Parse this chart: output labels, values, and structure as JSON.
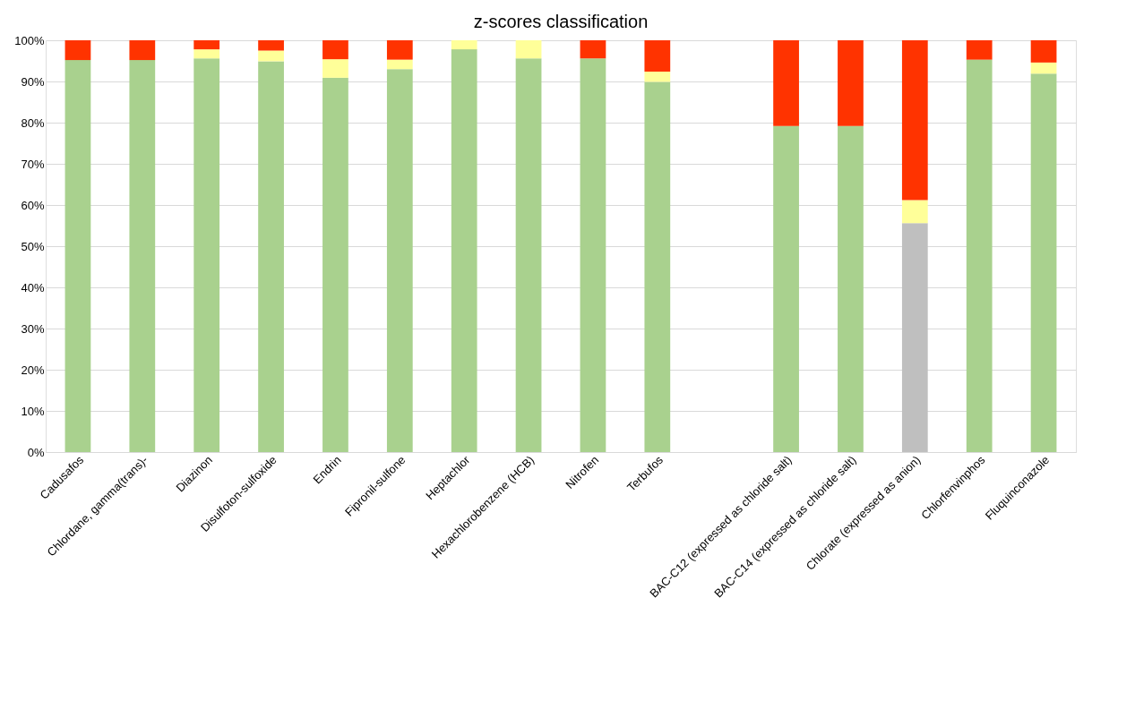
{
  "chart_data": {
    "type": "bar",
    "title": "z-scores classification",
    "stacked": true,
    "categories": [
      "Cadusafos",
      "Chlordane, gamma(trans)-",
      "Diazinon",
      "Disulfoton-sulfoxide",
      "Endrin",
      "Fipronil-sulfone",
      "Heptachlor",
      "Hexachlorobenzene (HCB)",
      "Nitrofen",
      "Terbufos",
      null,
      "BAC-C12 (expressed as chloride salt)",
      "BAC-C14 (expressed as chloride salt)",
      "Chlorate (expressed as anion)",
      "Chlorfenvinphos",
      "Fluquinconazole"
    ],
    "series": [
      {
        "color": "#bfbfbf",
        "values": [
          null,
          null,
          null,
          null,
          null,
          null,
          null,
          null,
          null,
          null,
          null,
          null,
          null,
          55.6,
          null,
          null
        ]
      },
      {
        "color": "#a9d18e",
        "values": [
          95.2,
          95.2,
          95.6,
          94.9,
          90.9,
          93.0,
          97.8,
          95.6,
          95.6,
          89.9,
          null,
          79.2,
          79.2,
          null,
          95.3,
          91.9
        ]
      },
      {
        "color": "#ffff99",
        "values": [
          null,
          null,
          2.2,
          2.6,
          4.5,
          2.3,
          2.2,
          4.4,
          null,
          2.5,
          null,
          null,
          null,
          5.6,
          null,
          2.7
        ]
      },
      {
        "color": "#ff3300",
        "values": [
          4.8,
          4.8,
          2.2,
          2.5,
          4.6,
          4.7,
          null,
          null,
          4.4,
          7.6,
          null,
          20.8,
          20.8,
          38.8,
          4.7,
          5.4
        ]
      }
    ],
    "ylim": [
      0,
      100
    ],
    "yticks": [
      {
        "value": 0,
        "label": "0%"
      },
      {
        "value": 10,
        "label": "10%"
      },
      {
        "value": 20,
        "label": "20%"
      },
      {
        "value": 30,
        "label": "30%"
      },
      {
        "value": 40,
        "label": "40%"
      },
      {
        "value": 50,
        "label": "50%"
      },
      {
        "value": 60,
        "label": "60%"
      },
      {
        "value": 70,
        "label": "70%"
      },
      {
        "value": 80,
        "label": "80%"
      },
      {
        "value": 90,
        "label": "90%"
      },
      {
        "value": 100,
        "label": "100%"
      }
    ],
    "grid": "y"
  }
}
